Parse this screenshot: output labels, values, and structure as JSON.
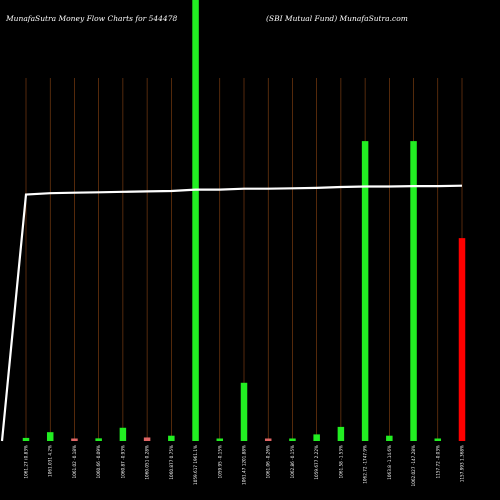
{
  "header": {
    "title_left": "MunafaSutra  Money Flow  Charts for 544478",
    "title_right": "(SBI Mutual Fund) MunafaSutra.com"
  },
  "chart_data": {
    "type": "bar",
    "title": "MunafaSutra  Money Flow  Charts for 544478",
    "subtitle": "(SBI Mutual Fund) MunafaSutra.com",
    "grid": true,
    "ylim": [
      0,
      100
    ],
    "categories": [
      "1061.27 (0.83%",
      "1061.031 4.2%",
      "1061.02 -0.18%",
      "1060.66 -0.09%",
      "1060.87 -0.93%",
      "1060.051 0.28%",
      "1060.877 0.75%",
      "1059.617 1961.1%",
      "1059.95 -0.15%",
      "1061.47 1201.88%",
      "1061.06 -0.26%",
      "1062.86 -0.15%",
      "1059.677 2.22%",
      "1061.58 -1.53%",
      "1062.72 -1747.9%",
      "1063.8 -1.14.6%",
      "1062.027 -147.28%",
      "1157.72 -0.03%",
      "1157.993 1.368%"
    ],
    "values": [
      0.7,
      2.0,
      0.4,
      0.6,
      3.0,
      0.8,
      1.2,
      100,
      0.4,
      13.2,
      0.5,
      0.4,
      1.5,
      3.2,
      68.0,
      1.2,
      68.0,
      0.5,
      46.0
    ],
    "colors": [
      "#22ee22",
      "#22ee22",
      "#e06666",
      "#22ee22",
      "#22ee22",
      "#e06666",
      "#22ee22",
      "#22ee22",
      "#22ee22",
      "#22ee22",
      "#e06666",
      "#22ee22",
      "#22ee22",
      "#22ee22",
      "#22ee22",
      "#22ee22",
      "#22ee22",
      "#22ee22",
      "#ff0000"
    ],
    "line": [
      55.9,
      56.2,
      56.3,
      56.4,
      56.5,
      56.6,
      56.7,
      57.0,
      57.0,
      57.2,
      57.2,
      57.3,
      57.4,
      57.6,
      57.7,
      57.7,
      57.8,
      57.8,
      57.9
    ],
    "line_start": 0
  },
  "colors": {
    "background": "#000000",
    "grid": "#8b4513",
    "line": "#ffffff"
  }
}
